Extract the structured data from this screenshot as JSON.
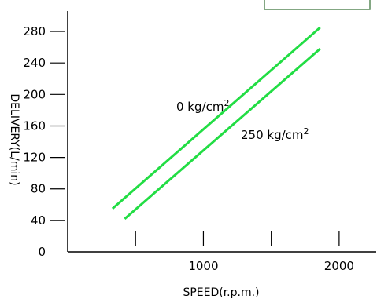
{
  "chart_data": {
    "type": "line",
    "title": "",
    "xlabel": "SPEED(r.p.m.)",
    "ylabel": "DELIVERY(L/min)",
    "xlim": [
      0,
      2250
    ],
    "ylim": [
      0,
      300
    ],
    "x_tick_labels": [
      {
        "value": 1000,
        "label": "1000"
      },
      {
        "value": 2000,
        "label": "2000"
      }
    ],
    "x_minor_ticks": [
      500,
      1000,
      1500,
      2000
    ],
    "y_ticks": [
      0,
      40,
      80,
      120,
      160,
      200,
      240,
      280
    ],
    "y_tick_labels": [
      "0",
      "40",
      "80",
      "120",
      "160",
      "200",
      "240",
      "280"
    ],
    "grid": false,
    "legend": "none",
    "series": [
      {
        "annotation": "0 kg/cm²",
        "color": "#22dd44",
        "points": [
          [
            330,
            55
          ],
          [
            1860,
            285
          ]
        ]
      },
      {
        "annotation": "250 kg/cm²",
        "color": "#22dd44",
        "points": [
          [
            420,
            42
          ],
          [
            1860,
            258
          ]
        ]
      }
    ]
  }
}
